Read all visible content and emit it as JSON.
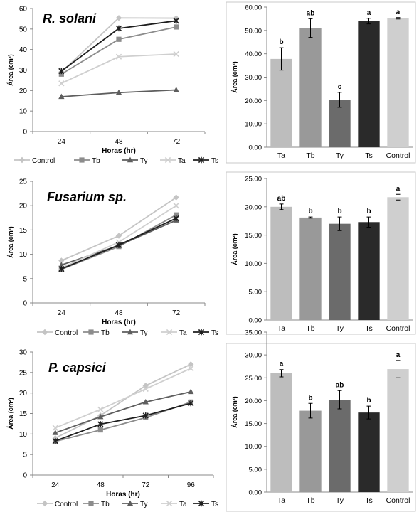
{
  "chart_data": [
    {
      "type": "line",
      "title": "R. solani",
      "xlabel": "Horas (hr)",
      "ylabel": "Área (cm²)",
      "x": [
        "24",
        "48",
        "72"
      ],
      "ylim": [
        0,
        60
      ],
      "yticks": [
        "0",
        "10",
        "20",
        "30",
        "40",
        "50",
        "60"
      ],
      "series": [
        {
          "name": "Control",
          "color": "#c4c4c4",
          "marker": "diamond",
          "values": [
            29.0,
            55.4,
            55.3
          ]
        },
        {
          "name": "Tb",
          "color": "#8c8c8c",
          "marker": "square",
          "values": [
            28.0,
            45.0,
            51.0
          ]
        },
        {
          "name": "Ty",
          "color": "#5e5e5e",
          "marker": "triangle",
          "values": [
            17.0,
            19.0,
            20.3
          ]
        },
        {
          "name": "Ta",
          "color": "#cfcfcf",
          "marker": "x",
          "values": [
            23.5,
            36.5,
            37.8
          ]
        },
        {
          "name": "Ts",
          "color": "#1e1e1e",
          "marker": "star",
          "values": [
            29.5,
            50.3,
            54.0
          ]
        }
      ],
      "legend_position": "bottom"
    },
    {
      "type": "bar",
      "ylabel": "Área (cm²)",
      "categories": [
        "Ta",
        "Tb",
        "Ty",
        "Ts",
        "Control"
      ],
      "values": [
        37.8,
        51.0,
        20.3,
        54.0,
        55.2
      ],
      "errors": [
        4.8,
        4.0,
        3.2,
        1.2,
        0.3
      ],
      "letters": [
        "b",
        "ab",
        "c",
        "a",
        "a"
      ],
      "colors": [
        "#bdbdbd",
        "#999999",
        "#6b6b6b",
        "#2a2a2a",
        "#cfcfcf"
      ],
      "ylim": [
        0,
        60
      ],
      "yticks": [
        "0.00",
        "10.00",
        "20.00",
        "30.00",
        "40.00",
        "50.00",
        "60.00"
      ]
    },
    {
      "type": "line",
      "title": "Fusarium sp.",
      "xlabel": "Horas (hr)",
      "ylabel": "Área (cm²)",
      "x": [
        "24",
        "48",
        "72"
      ],
      "ylim": [
        0,
        25
      ],
      "yticks": [
        "0",
        "5",
        "10",
        "15",
        "20",
        "25"
      ],
      "series": [
        {
          "name": "Control",
          "color": "#c4c4c4",
          "marker": "diamond",
          "values": [
            8.7,
            13.8,
            21.7
          ]
        },
        {
          "name": "Tb",
          "color": "#8c8c8c",
          "marker": "square",
          "values": [
            6.9,
            11.6,
            18.1
          ]
        },
        {
          "name": "Ty",
          "color": "#5e5e5e",
          "marker": "triangle",
          "values": [
            7.8,
            11.8,
            17.0
          ]
        },
        {
          "name": "Ta",
          "color": "#cfcfcf",
          "marker": "x",
          "values": [
            7.2,
            12.5,
            20.0
          ]
        },
        {
          "name": "Ts",
          "color": "#1e1e1e",
          "marker": "star",
          "values": [
            7.0,
            11.9,
            17.4
          ]
        }
      ],
      "legend_position": "bottom"
    },
    {
      "type": "bar",
      "ylabel": "Área (cm²)",
      "categories": [
        "Ta",
        "Tb",
        "Ty",
        "Ts",
        "Control"
      ],
      "values": [
        20.0,
        18.1,
        17.0,
        17.3,
        21.7
      ],
      "errors": [
        0.5,
        0.1,
        1.2,
        0.9,
        0.5
      ],
      "letters": [
        "ab",
        "b",
        "b",
        "b",
        "a"
      ],
      "colors": [
        "#bdbdbd",
        "#999999",
        "#6b6b6b",
        "#2a2a2a",
        "#cfcfcf"
      ],
      "ylim": [
        0,
        25
      ],
      "yticks": [
        "0.00",
        "5.00",
        "10.00",
        "15.00",
        "20.00",
        "25.00"
      ]
    },
    {
      "type": "line",
      "title": "P. capsici",
      "xlabel": "Horas (hr)",
      "ylabel": "Área (cm²)",
      "x": [
        "24",
        "48",
        "72",
        "96"
      ],
      "ylim": [
        0,
        30
      ],
      "yticks": [
        "0",
        "5",
        "10",
        "15",
        "20",
        "25",
        "30"
      ],
      "series": [
        {
          "name": "Control",
          "color": "#c4c4c4",
          "marker": "diamond",
          "values": [
            9.0,
            14.5,
            21.8,
            27.0
          ]
        },
        {
          "name": "Tb",
          "color": "#8c8c8c",
          "marker": "square",
          "values": [
            8.2,
            11.0,
            14.0,
            17.8
          ]
        },
        {
          "name": "Ty",
          "color": "#5e5e5e",
          "marker": "triangle",
          "values": [
            10.3,
            14.2,
            17.8,
            20.3
          ]
        },
        {
          "name": "Ta",
          "color": "#cfcfcf",
          "marker": "x",
          "values": [
            11.5,
            16.0,
            21.0,
            26.0
          ]
        },
        {
          "name": "Ts",
          "color": "#1e1e1e",
          "marker": "star",
          "values": [
            8.3,
            12.4,
            14.5,
            17.5
          ]
        }
      ],
      "legend_position": "bottom"
    },
    {
      "type": "bar",
      "ylabel": "Área (cm²)",
      "categories": [
        "Ta",
        "Tb",
        "Ty",
        "Ts",
        "Control"
      ],
      "values": [
        26.0,
        17.8,
        20.2,
        17.4,
        26.9
      ],
      "errors": [
        0.8,
        1.6,
        2.0,
        1.4,
        1.9
      ],
      "letters": [
        "a",
        "b",
        "ab",
        "b",
        "a"
      ],
      "colors": [
        "#bdbdbd",
        "#999999",
        "#6b6b6b",
        "#2a2a2a",
        "#cfcfcf"
      ],
      "ylim": [
        0,
        35
      ],
      "yticks": [
        "0.00",
        "5.00",
        "10.00",
        "15.00",
        "20.00",
        "25.00",
        "30.00",
        "35.00"
      ]
    }
  ]
}
